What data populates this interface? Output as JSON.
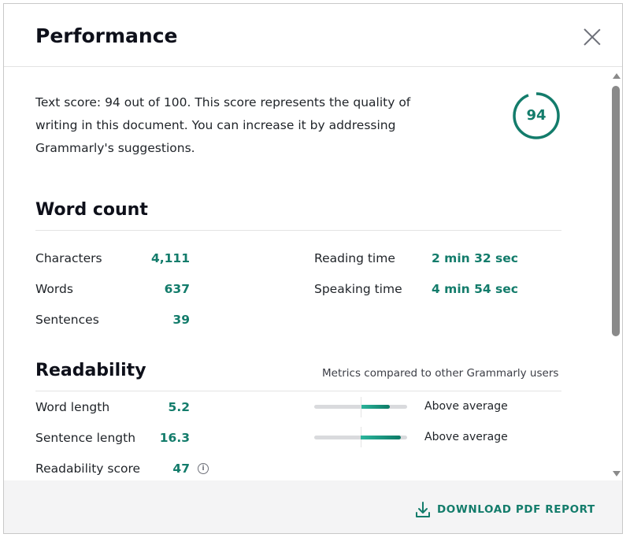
{
  "title": "Performance",
  "intro": "Text score: 94 out of 100. This score represents the quality of writing in this document. You can increase it by addressing Grammarly's suggestions.",
  "score": {
    "value": "94",
    "percent": 94,
    "color": "#137c6b"
  },
  "word_count": {
    "heading": "Word count",
    "left": [
      {
        "label": "Characters",
        "value": "4,111"
      },
      {
        "label": "Words",
        "value": "637"
      },
      {
        "label": "Sentences",
        "value": "39"
      }
    ],
    "right": [
      {
        "label": "Reading time",
        "value": "2 min 32 sec"
      },
      {
        "label": "Speaking time",
        "value": "4 min 54 sec"
      }
    ]
  },
  "readability": {
    "heading": "Readability",
    "note": "Metrics compared to other Grammarly users",
    "items": [
      {
        "label": "Word length",
        "value": "5.2",
        "comparison": "Above average",
        "bar_fraction": 0.31
      },
      {
        "label": "Sentence length",
        "value": "16.3",
        "comparison": "Above average",
        "bar_fraction": 0.43
      },
      {
        "label": "Readability score",
        "value": "47",
        "info_icon": "info-icon"
      }
    ]
  },
  "footer": {
    "download_label": "DOWNLOAD PDF REPORT",
    "icon": "download-icon"
  }
}
